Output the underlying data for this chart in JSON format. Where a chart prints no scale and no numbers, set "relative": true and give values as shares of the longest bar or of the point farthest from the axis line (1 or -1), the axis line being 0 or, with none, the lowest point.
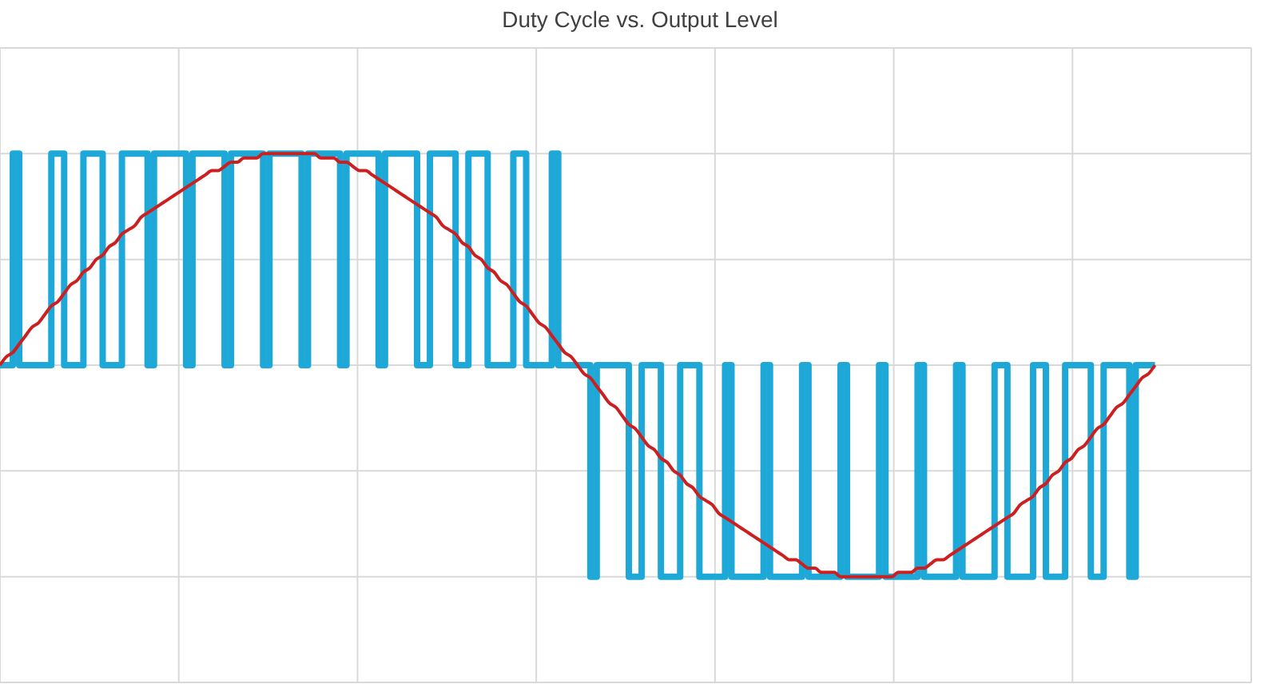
{
  "chart_data": {
    "type": "line",
    "title": "Duty Cycle vs. Output Level",
    "relative": true,
    "grid": true,
    "marker": "none",
    "line_style": "solid",
    "categories": [
      null,
      null,
      null,
      null,
      null,
      null,
      null,
      null,
      null,
      null,
      null,
      null,
      null,
      null,
      null,
      null,
      null,
      null,
      null,
      null,
      null,
      null,
      null,
      null,
      null,
      null,
      null,
      null,
      null,
      null,
      null,
      null,
      null,
      null,
      null,
      null,
      null,
      null,
      null,
      null,
      null,
      null,
      null,
      null,
      null,
      null,
      null,
      null,
      null,
      null,
      null,
      null,
      null,
      null,
      null,
      null,
      null,
      null,
      null,
      null,
      null,
      null,
      null,
      null,
      null,
      null,
      null,
      null,
      null,
      null,
      null,
      null,
      null,
      null,
      null,
      null,
      null,
      null,
      null,
      null,
      null,
      null,
      null,
      null,
      null,
      null,
      null,
      null,
      null,
      null,
      null,
      null,
      null,
      null,
      null,
      null,
      null,
      null,
      null,
      null,
      null,
      null,
      null,
      null,
      null,
      null,
      null,
      null,
      null,
      null,
      null,
      null,
      null,
      null,
      null,
      null,
      null,
      null,
      null,
      null,
      null,
      null,
      null,
      null,
      null,
      null,
      null,
      null,
      null,
      null,
      null,
      null,
      null,
      null,
      null,
      null,
      null,
      null,
      null,
      null,
      null,
      null,
      null,
      null,
      null,
      null,
      null,
      null,
      null,
      null,
      null,
      null,
      null,
      null,
      null,
      null,
      null,
      null,
      null,
      null,
      null,
      null,
      null,
      null,
      null,
      null,
      null,
      null,
      null,
      null,
      null,
      null,
      null,
      null,
      null,
      null,
      null,
      null,
      null,
      null,
      null,
      null,
      null,
      null,
      null,
      null,
      null,
      null,
      null,
      null,
      null,
      null,
      null,
      null,
      null,
      null
    ],
    "series": [
      {
        "type": "step",
        "color": "#1ea8d8",
        "values": [
          0.5,
          0.5,
          1,
          0.5,
          0.5,
          0.5,
          0.5,
          0.5,
          1,
          1,
          0.5,
          0.5,
          0.5,
          1,
          1,
          1,
          0.5,
          0.5,
          0.5,
          1,
          1,
          1,
          1,
          0.5,
          1,
          1,
          1,
          1,
          1,
          0.5,
          1,
          1,
          1,
          1,
          1,
          0.5,
          1,
          1,
          1,
          1,
          1,
          0.5,
          1,
          1,
          1,
          1,
          1,
          0.5,
          1,
          1,
          1,
          1,
          1,
          0.5,
          1,
          1,
          1,
          1,
          1,
          0.5,
          1,
          1,
          1,
          1,
          1,
          0.5,
          0.5,
          1,
          1,
          1,
          1,
          0.5,
          0.5,
          1,
          1,
          1,
          0.5,
          0.5,
          0.5,
          0.5,
          1,
          1,
          0.5,
          0.5,
          0.5,
          0.5,
          1,
          0.5,
          0.5,
          0.5,
          0.5,
          0.5,
          0,
          0.5,
          0.5,
          0.5,
          0.5,
          0.5,
          0,
          0,
          0.5,
          0.5,
          0.5,
          0,
          0,
          0,
          0.5,
          0.5,
          0.5,
          0,
          0,
          0,
          0,
          0.5,
          0,
          0,
          0,
          0,
          0,
          0.5,
          0,
          0,
          0,
          0,
          0,
          0.5,
          0,
          0,
          0,
          0,
          0,
          0.5,
          0,
          0,
          0,
          0,
          0,
          0.5,
          0,
          0,
          0,
          0,
          0,
          0.5,
          0,
          0,
          0,
          0,
          0,
          0.5,
          0,
          0,
          0,
          0,
          0,
          0.5,
          0.5,
          0,
          0,
          0,
          0,
          0.5,
          0.5,
          0,
          0,
          0,
          0.5,
          0.5,
          0.5,
          0.5,
          0,
          0,
          0.5,
          0.5,
          0.5,
          0.5,
          0,
          0.5,
          0.5,
          0.5,
          0.5,
          null,
          null,
          null,
          null,
          null,
          null,
          null,
          null,
          null,
          null,
          null,
          null,
          null,
          null,
          null
        ]
      },
      {
        "type": "line",
        "color": "#cc2020",
        "values": [
          0.5,
          0.52,
          0.53,
          0.55,
          0.57,
          0.59,
          0.6,
          0.62,
          0.64,
          0.65,
          0.67,
          0.69,
          0.7,
          0.72,
          0.73,
          0.75,
          0.76,
          0.78,
          0.79,
          0.81,
          0.82,
          0.83,
          0.85,
          0.86,
          0.87,
          0.88,
          0.89,
          0.9,
          0.91,
          0.92,
          0.93,
          0.94,
          0.95,
          0.96,
          0.96,
          0.97,
          0.98,
          0.98,
          0.99,
          0.99,
          0.99,
          1,
          1,
          1,
          1,
          1,
          1,
          1,
          1,
          1,
          0.99,
          0.99,
          0.99,
          0.98,
          0.98,
          0.97,
          0.96,
          0.96,
          0.95,
          0.94,
          0.93,
          0.92,
          0.91,
          0.9,
          0.89,
          0.88,
          0.87,
          0.86,
          0.85,
          0.83,
          0.82,
          0.81,
          0.79,
          0.78,
          0.76,
          0.75,
          0.73,
          0.72,
          0.7,
          0.69,
          0.67,
          0.65,
          0.64,
          0.62,
          0.6,
          0.59,
          0.57,
          0.55,
          0.53,
          0.52,
          0.5,
          0.48,
          0.47,
          0.45,
          0.43,
          0.41,
          0.4,
          0.38,
          0.36,
          0.35,
          0.33,
          0.31,
          0.3,
          0.28,
          0.27,
          0.25,
          0.24,
          0.22,
          0.21,
          0.19,
          0.18,
          0.17,
          0.15,
          0.14,
          0.13,
          0.12,
          0.11,
          0.1,
          0.09,
          0.08,
          0.07,
          0.06,
          0.05,
          0.04,
          0.04,
          0.03,
          0.02,
          0.02,
          0.01,
          0.01,
          0.01,
          0,
          0,
          0,
          0,
          0,
          0,
          0,
          0,
          0,
          0.01,
          0.01,
          0.01,
          0.02,
          0.02,
          0.03,
          0.04,
          0.04,
          0.05,
          0.06,
          0.07,
          0.08,
          0.09,
          0.1,
          0.11,
          0.12,
          0.13,
          0.14,
          0.15,
          0.17,
          0.18,
          0.19,
          0.21,
          0.22,
          0.24,
          0.25,
          0.27,
          0.28,
          0.3,
          0.31,
          0.33,
          0.35,
          0.36,
          0.38,
          0.4,
          0.41,
          0.43,
          0.45,
          0.47,
          0.48,
          0.5,
          null,
          null,
          null,
          null,
          null,
          null,
          null,
          null,
          null,
          null,
          null,
          null,
          null,
          null,
          null
        ]
      }
    ]
  }
}
